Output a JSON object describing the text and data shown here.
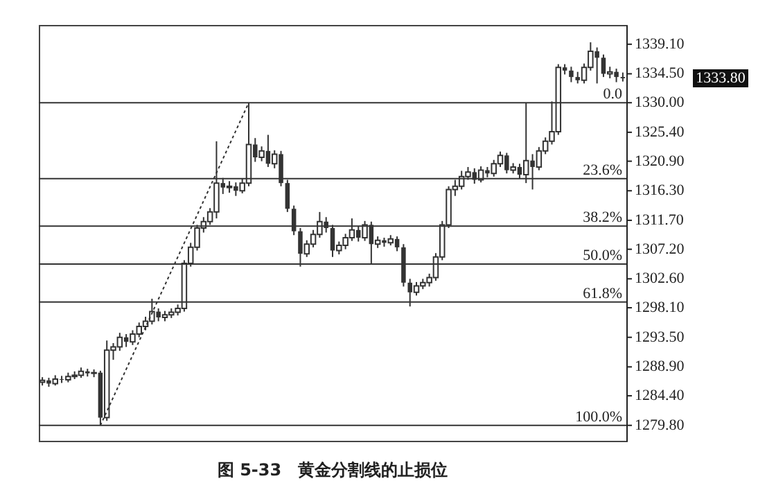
{
  "chart_data": {
    "type": "candlestick",
    "title": "图 5-33　黄金分割线的止损位",
    "color": "#333333",
    "categories": [
      null,
      null,
      null,
      null,
      null,
      null,
      null,
      null,
      null,
      null,
      null,
      null,
      null,
      null,
      null,
      null,
      null,
      null,
      null,
      null,
      null,
      null,
      null,
      null,
      null,
      null,
      null,
      null,
      null,
      null,
      null,
      null,
      null,
      null,
      null,
      null,
      null,
      null,
      null,
      null,
      null,
      null,
      null,
      null,
      null,
      null,
      null,
      null,
      null,
      null,
      null,
      null,
      null,
      null,
      null,
      null,
      null,
      null,
      null,
      null,
      null,
      null,
      null,
      null,
      null,
      null,
      null,
      null,
      null,
      null,
      null,
      null,
      null,
      null,
      null,
      null,
      null,
      null,
      null,
      null,
      null,
      null,
      null,
      null,
      null,
      null,
      null,
      null,
      null,
      null,
      null
    ],
    "ohlc": [
      [
        1286.5,
        1287.3,
        1286.0,
        1286.8
      ],
      [
        1286.8,
        1287.2,
        1285.8,
        1286.3
      ],
      [
        1286.3,
        1287.6,
        1286.0,
        1287.0
      ],
      [
        1287.0,
        1287.5,
        1286.4,
        1286.9
      ],
      [
        1286.9,
        1288.0,
        1286.5,
        1287.4
      ],
      [
        1287.4,
        1288.2,
        1287.0,
        1287.6
      ],
      [
        1287.6,
        1288.8,
        1287.2,
        1288.2
      ],
      [
        1288.2,
        1288.6,
        1287.4,
        1287.9
      ],
      [
        1287.9,
        1288.5,
        1287.3,
        1288.0
      ],
      [
        1288.0,
        1288.3,
        1279.8,
        1281.0
      ],
      [
        1281.0,
        1293.0,
        1280.5,
        1291.5
      ],
      [
        1291.5,
        1292.6,
        1290.0,
        1292.0
      ],
      [
        1292.0,
        1294.2,
        1291.4,
        1293.5
      ],
      [
        1293.5,
        1294.0,
        1292.0,
        1292.8
      ],
      [
        1292.8,
        1294.6,
        1292.3,
        1294.0
      ],
      [
        1294.0,
        1295.8,
        1293.5,
        1295.2
      ],
      [
        1295.2,
        1296.7,
        1294.6,
        1296.0
      ],
      [
        1296.0,
        1299.5,
        1295.5,
        1297.5
      ],
      [
        1297.5,
        1298.0,
        1296.0,
        1296.6
      ],
      [
        1296.6,
        1297.6,
        1296.0,
        1297.0
      ],
      [
        1297.0,
        1298.0,
        1296.5,
        1297.4
      ],
      [
        1297.4,
        1298.6,
        1296.9,
        1298.0
      ],
      [
        1298.0,
        1305.5,
        1297.5,
        1305.0
      ],
      [
        1305.0,
        1308.2,
        1304.5,
        1307.5
      ],
      [
        1307.5,
        1311.0,
        1307.0,
        1310.5
      ],
      [
        1310.5,
        1312.2,
        1309.8,
        1311.5
      ],
      [
        1311.5,
        1313.6,
        1311.0,
        1313.0
      ],
      [
        1313.0,
        1324.0,
        1312.0,
        1317.5
      ],
      [
        1317.5,
        1318.3,
        1315.8,
        1316.8
      ],
      [
        1316.8,
        1317.8,
        1316.0,
        1317.0
      ],
      [
        1317.0,
        1317.6,
        1315.5,
        1316.3
      ],
      [
        1316.3,
        1318.2,
        1315.9,
        1317.5
      ],
      [
        1317.5,
        1330.0,
        1317.0,
        1323.5
      ],
      [
        1323.5,
        1324.5,
        1320.8,
        1321.5
      ],
      [
        1321.5,
        1323.2,
        1320.9,
        1322.5
      ],
      [
        1322.5,
        1325.0,
        1320.0,
        1320.5
      ],
      [
        1320.5,
        1322.6,
        1319.8,
        1322.0
      ],
      [
        1322.0,
        1322.5,
        1317.0,
        1317.5
      ],
      [
        1317.5,
        1318.0,
        1313.0,
        1313.5
      ],
      [
        1313.5,
        1314.0,
        1309.4,
        1310.0
      ],
      [
        1310.0,
        1310.5,
        1304.5,
        1306.5
      ],
      [
        1306.5,
        1308.6,
        1306.0,
        1308.0
      ],
      [
        1308.0,
        1310.2,
        1307.5,
        1309.5
      ],
      [
        1309.5,
        1313.0,
        1309.0,
        1311.5
      ],
      [
        1311.5,
        1312.2,
        1309.8,
        1310.5
      ],
      [
        1310.5,
        1311.0,
        1306.0,
        1307.0
      ],
      [
        1307.0,
        1308.4,
        1306.4,
        1307.8
      ],
      [
        1307.8,
        1309.6,
        1307.2,
        1309.0
      ],
      [
        1309.0,
        1312.0,
        1308.5,
        1310.2
      ],
      [
        1310.2,
        1310.8,
        1308.4,
        1309.0
      ],
      [
        1309.0,
        1311.6,
        1308.5,
        1311.0
      ],
      [
        1311.0,
        1311.5,
        1305.0,
        1308.0
      ],
      [
        1308.0,
        1309.2,
        1307.4,
        1308.6
      ],
      [
        1308.6,
        1309.0,
        1307.6,
        1308.2
      ],
      [
        1308.2,
        1309.4,
        1307.8,
        1308.8
      ],
      [
        1308.8,
        1309.2,
        1306.9,
        1307.5
      ],
      [
        1307.5,
        1308.0,
        1301.4,
        1302.0
      ],
      [
        1302.0,
        1302.6,
        1298.3,
        1300.5
      ],
      [
        1300.5,
        1302.1,
        1300.0,
        1301.5
      ],
      [
        1301.5,
        1302.6,
        1301.0,
        1302.0
      ],
      [
        1302.0,
        1303.4,
        1301.4,
        1302.8
      ],
      [
        1302.8,
        1306.6,
        1302.3,
        1306.0
      ],
      [
        1306.0,
        1311.6,
        1305.5,
        1311.0
      ],
      [
        1311.0,
        1317.0,
        1310.5,
        1316.5
      ],
      [
        1316.5,
        1318.0,
        1315.5,
        1317.0
      ],
      [
        1317.0,
        1319.4,
        1316.5,
        1318.5
      ],
      [
        1318.5,
        1320.0,
        1318.0,
        1319.2
      ],
      [
        1319.2,
        1319.8,
        1317.4,
        1318.0
      ],
      [
        1318.0,
        1320.1,
        1317.6,
        1319.5
      ],
      [
        1319.5,
        1320.0,
        1318.4,
        1319.0
      ],
      [
        1319.0,
        1321.1,
        1318.5,
        1320.5
      ],
      [
        1320.5,
        1322.4,
        1320.0,
        1321.8
      ],
      [
        1321.8,
        1322.2,
        1319.0,
        1319.5
      ],
      [
        1319.5,
        1320.6,
        1319.0,
        1320.0
      ],
      [
        1320.0,
        1320.5,
        1318.2,
        1318.8
      ],
      [
        1318.8,
        1330.0,
        1317.5,
        1321.0
      ],
      [
        1321.0,
        1322.0,
        1316.5,
        1320.0
      ],
      [
        1320.0,
        1323.1,
        1319.5,
        1322.5
      ],
      [
        1322.5,
        1324.6,
        1322.0,
        1324.0
      ],
      [
        1324.0,
        1330.2,
        1323.5,
        1325.5
      ],
      [
        1325.5,
        1336.0,
        1325.0,
        1335.5
      ],
      [
        1335.5,
        1336.0,
        1334.4,
        1335.0
      ],
      [
        1335.0,
        1335.6,
        1333.2,
        1334.0
      ],
      [
        1334.0,
        1334.8,
        1333.0,
        1333.5
      ],
      [
        1333.5,
        1336.1,
        1333.0,
        1335.5
      ],
      [
        1335.5,
        1339.4,
        1335.0,
        1338.0
      ],
      [
        1338.0,
        1338.6,
        1333.0,
        1337.0
      ],
      [
        1337.0,
        1337.5,
        1334.0,
        1334.5
      ],
      [
        1334.5,
        1335.6,
        1333.8,
        1334.8
      ],
      [
        1334.8,
        1335.3,
        1333.2,
        1334.0
      ],
      [
        1334.0,
        1334.7,
        1333.3,
        1333.8
      ]
    ],
    "series": [
      {
        "type": "line",
        "color": "#333333",
        "line_style": "dotted",
        "marker": "none",
        "values": [
          null,
          null,
          null,
          null,
          null,
          null,
          null,
          null,
          null,
          1279.8,
          null,
          null,
          null,
          null,
          null,
          null,
          null,
          null,
          null,
          null,
          null,
          null,
          null,
          null,
          null,
          null,
          null,
          null,
          null,
          null,
          null,
          null,
          1330.0,
          null,
          null,
          null,
          null,
          null,
          null,
          null,
          null,
          null,
          null,
          null,
          null,
          null,
          null,
          null,
          null,
          null,
          null,
          null,
          null,
          null,
          null,
          null,
          null,
          null,
          null,
          null,
          null,
          null,
          null,
          null,
          null,
          null,
          null,
          null,
          null,
          null,
          null,
          null,
          null,
          null,
          null,
          null,
          null,
          null,
          null,
          null,
          null,
          null,
          null,
          null,
          null,
          null,
          null,
          null,
          null,
          null,
          null
        ]
      }
    ],
    "ylim": [
      1277.4,
      1342.1
    ],
    "yticks": [
      {
        "value": 1279.8,
        "label": "1279.80"
      },
      {
        "value": 1284.4,
        "label": "1284.40"
      },
      {
        "value": 1288.9,
        "label": "1288.90"
      },
      {
        "value": 1293.5,
        "label": "1293.50"
      },
      {
        "value": 1298.1,
        "label": "1298.10"
      },
      {
        "value": 1302.6,
        "label": "1302.60"
      },
      {
        "value": 1307.2,
        "label": "1307.20"
      },
      {
        "value": 1311.7,
        "label": "1311.70"
      },
      {
        "value": 1316.3,
        "label": "1316.30"
      },
      {
        "value": 1320.9,
        "label": "1320.90"
      },
      {
        "value": 1325.4,
        "label": "1325.40"
      },
      {
        "value": 1330.0,
        "label": "1330.00"
      },
      {
        "value": 1334.5,
        "label": "1334.50"
      },
      {
        "value": 1339.1,
        "label": "1339.10"
      }
    ],
    "tick_labels": "y",
    "ref_lines": [
      {
        "axis": "y",
        "value": 1330.0,
        "color": "#333333"
      },
      {
        "axis": "y",
        "value": 1318.2,
        "color": "#333333"
      },
      {
        "axis": "y",
        "value": 1310.8,
        "color": "#333333"
      },
      {
        "axis": "y",
        "value": 1304.9,
        "color": "#333333"
      },
      {
        "axis": "y",
        "value": 1299.0,
        "color": "#333333"
      },
      {
        "axis": "y",
        "value": 1279.8,
        "color": "#333333"
      }
    ],
    "annotations": [
      "1333.80",
      {
        "text": "0.0",
        "y": 1330.0
      },
      {
        "text": "23.6%",
        "y": 1318.2
      },
      {
        "text": "38.2%",
        "y": 1310.8
      },
      {
        "text": "50.0%",
        "y": 1304.9
      },
      {
        "text": "61.8%",
        "y": 1299.0
      },
      {
        "text": "100.0%",
        "y": 1279.8
      }
    ]
  }
}
